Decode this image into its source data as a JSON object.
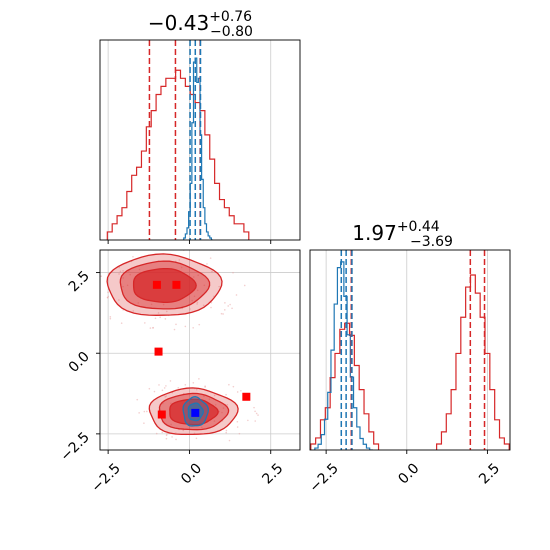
{
  "chart_data": {
    "type": "corner",
    "colors": {
      "red": "#d62728",
      "blue": "#1f77b4",
      "marker_red": "#ff0000",
      "marker_blue": "#0000ff",
      "grid": "#cccccc"
    },
    "titles": [
      {
        "value": "−0.43",
        "plus": "+0.76",
        "minus": "−0.80"
      },
      {
        "value": "1.97",
        "plus": "+0.44",
        "minus": "−3.69"
      }
    ],
    "x_ticks": [
      "−2.5",
      "0.0",
      "2.5"
    ],
    "x_tick_values": [
      -2.5,
      0.0,
      2.5
    ],
    "y_ticks": [
      "−2.5",
      "0.0",
      "2.5"
    ],
    "y_tick_values": [
      -2.5,
      0.0,
      2.5
    ],
    "p0_range": [
      -2.75,
      3.4
    ],
    "p1_range": [
      -3.0,
      3.2
    ],
    "panel_p0_hist": {
      "red_hist": {
        "x": [
          -2.45,
          -2.3,
          -2.15,
          -2.0,
          -1.85,
          -1.7,
          -1.55,
          -1.4,
          -1.25,
          -1.1,
          -0.95,
          -0.8,
          -0.65,
          -0.5,
          -0.35,
          -0.2,
          -0.05,
          0.1,
          0.25,
          0.4,
          0.55,
          0.7,
          0.85,
          1.0,
          1.15,
          1.3,
          1.45,
          1.6,
          1.75
        ],
        "y": [
          1,
          2,
          3,
          4,
          6,
          8,
          9,
          11,
          14,
          16,
          18,
          19,
          20,
          20,
          21,
          20,
          19,
          18,
          17,
          16,
          13,
          10,
          7,
          5,
          4,
          3,
          2,
          2,
          1
        ]
      },
      "blue_hist": {
        "x": [
          -0.15,
          -0.1,
          -0.05,
          0.0,
          0.05,
          0.1,
          0.15,
          0.2,
          0.25,
          0.3,
          0.35,
          0.4,
          0.45,
          0.5,
          0.55,
          0.6,
          0.65,
          0.7
        ],
        "y": [
          1,
          3,
          6,
          14,
          28,
          58,
          88,
          90,
          78,
          80,
          52,
          30,
          16,
          8,
          4,
          2,
          1,
          0
        ]
      },
      "red_quantiles": [
        -1.23,
        -0.43,
        0.33
      ],
      "blue_quantiles": [
        0.02,
        0.18,
        0.34
      ],
      "ymax": 95
    },
    "panel_p1_hist": {
      "red_hist": {
        "x": [
          -2.9,
          -2.75,
          -2.6,
          -2.45,
          -2.3,
          -2.15,
          -2.0,
          -1.85,
          -1.7,
          -1.55,
          -1.4,
          -1.25,
          -1.1,
          -0.95,
          1.0,
          1.15,
          1.3,
          1.45,
          1.6,
          1.75,
          1.9,
          2.05,
          2.2,
          2.35,
          2.5,
          2.65,
          2.8,
          2.95,
          3.1
        ],
        "y": [
          1,
          2,
          5,
          7,
          12,
          16,
          20,
          21,
          19,
          14,
          10,
          6,
          3,
          1,
          1,
          3,
          6,
          10,
          16,
          22,
          27,
          29,
          26,
          22,
          16,
          10,
          5,
          2,
          1
        ]
      },
      "blue_hist": {
        "x": [
          -2.8,
          -2.7,
          -2.6,
          -2.5,
          -2.4,
          -2.3,
          -2.2,
          -2.1,
          -2.0,
          -1.9,
          -1.8,
          -1.7,
          -1.6,
          -1.5,
          -1.4,
          -1.3,
          -1.2,
          -1.1
        ],
        "y": [
          1,
          3,
          8,
          16,
          30,
          52,
          76,
          95,
          98,
          80,
          60,
          38,
          22,
          12,
          6,
          3,
          1,
          0
        ]
      },
      "red_quantiles": [
        -1.72,
        1.97,
        2.41
      ],
      "blue_quantiles": [
        -2.03,
        -1.88,
        -1.7
      ],
      "ymax": 100
    },
    "panel_2d": {
      "red_mode_upper": {
        "cx": -0.8,
        "cy": 2.1,
        "rx": 1.75,
        "ry": 0.95
      },
      "red_mode_lower": {
        "cx": 0.1,
        "cy": -1.82,
        "rx": 1.35,
        "ry": 0.72
      },
      "blue_mode": {
        "cx": 0.18,
        "cy": -1.82,
        "rx": 0.38,
        "ry": 0.45
      },
      "red_markers": [
        [
          -1.0,
          2.12
        ],
        [
          -0.4,
          2.12
        ],
        [
          -0.95,
          0.05
        ],
        [
          -0.85,
          -1.9
        ],
        [
          1.75,
          -1.35
        ]
      ],
      "blue_markers": [
        [
          0.18,
          -1.85
        ]
      ]
    }
  }
}
